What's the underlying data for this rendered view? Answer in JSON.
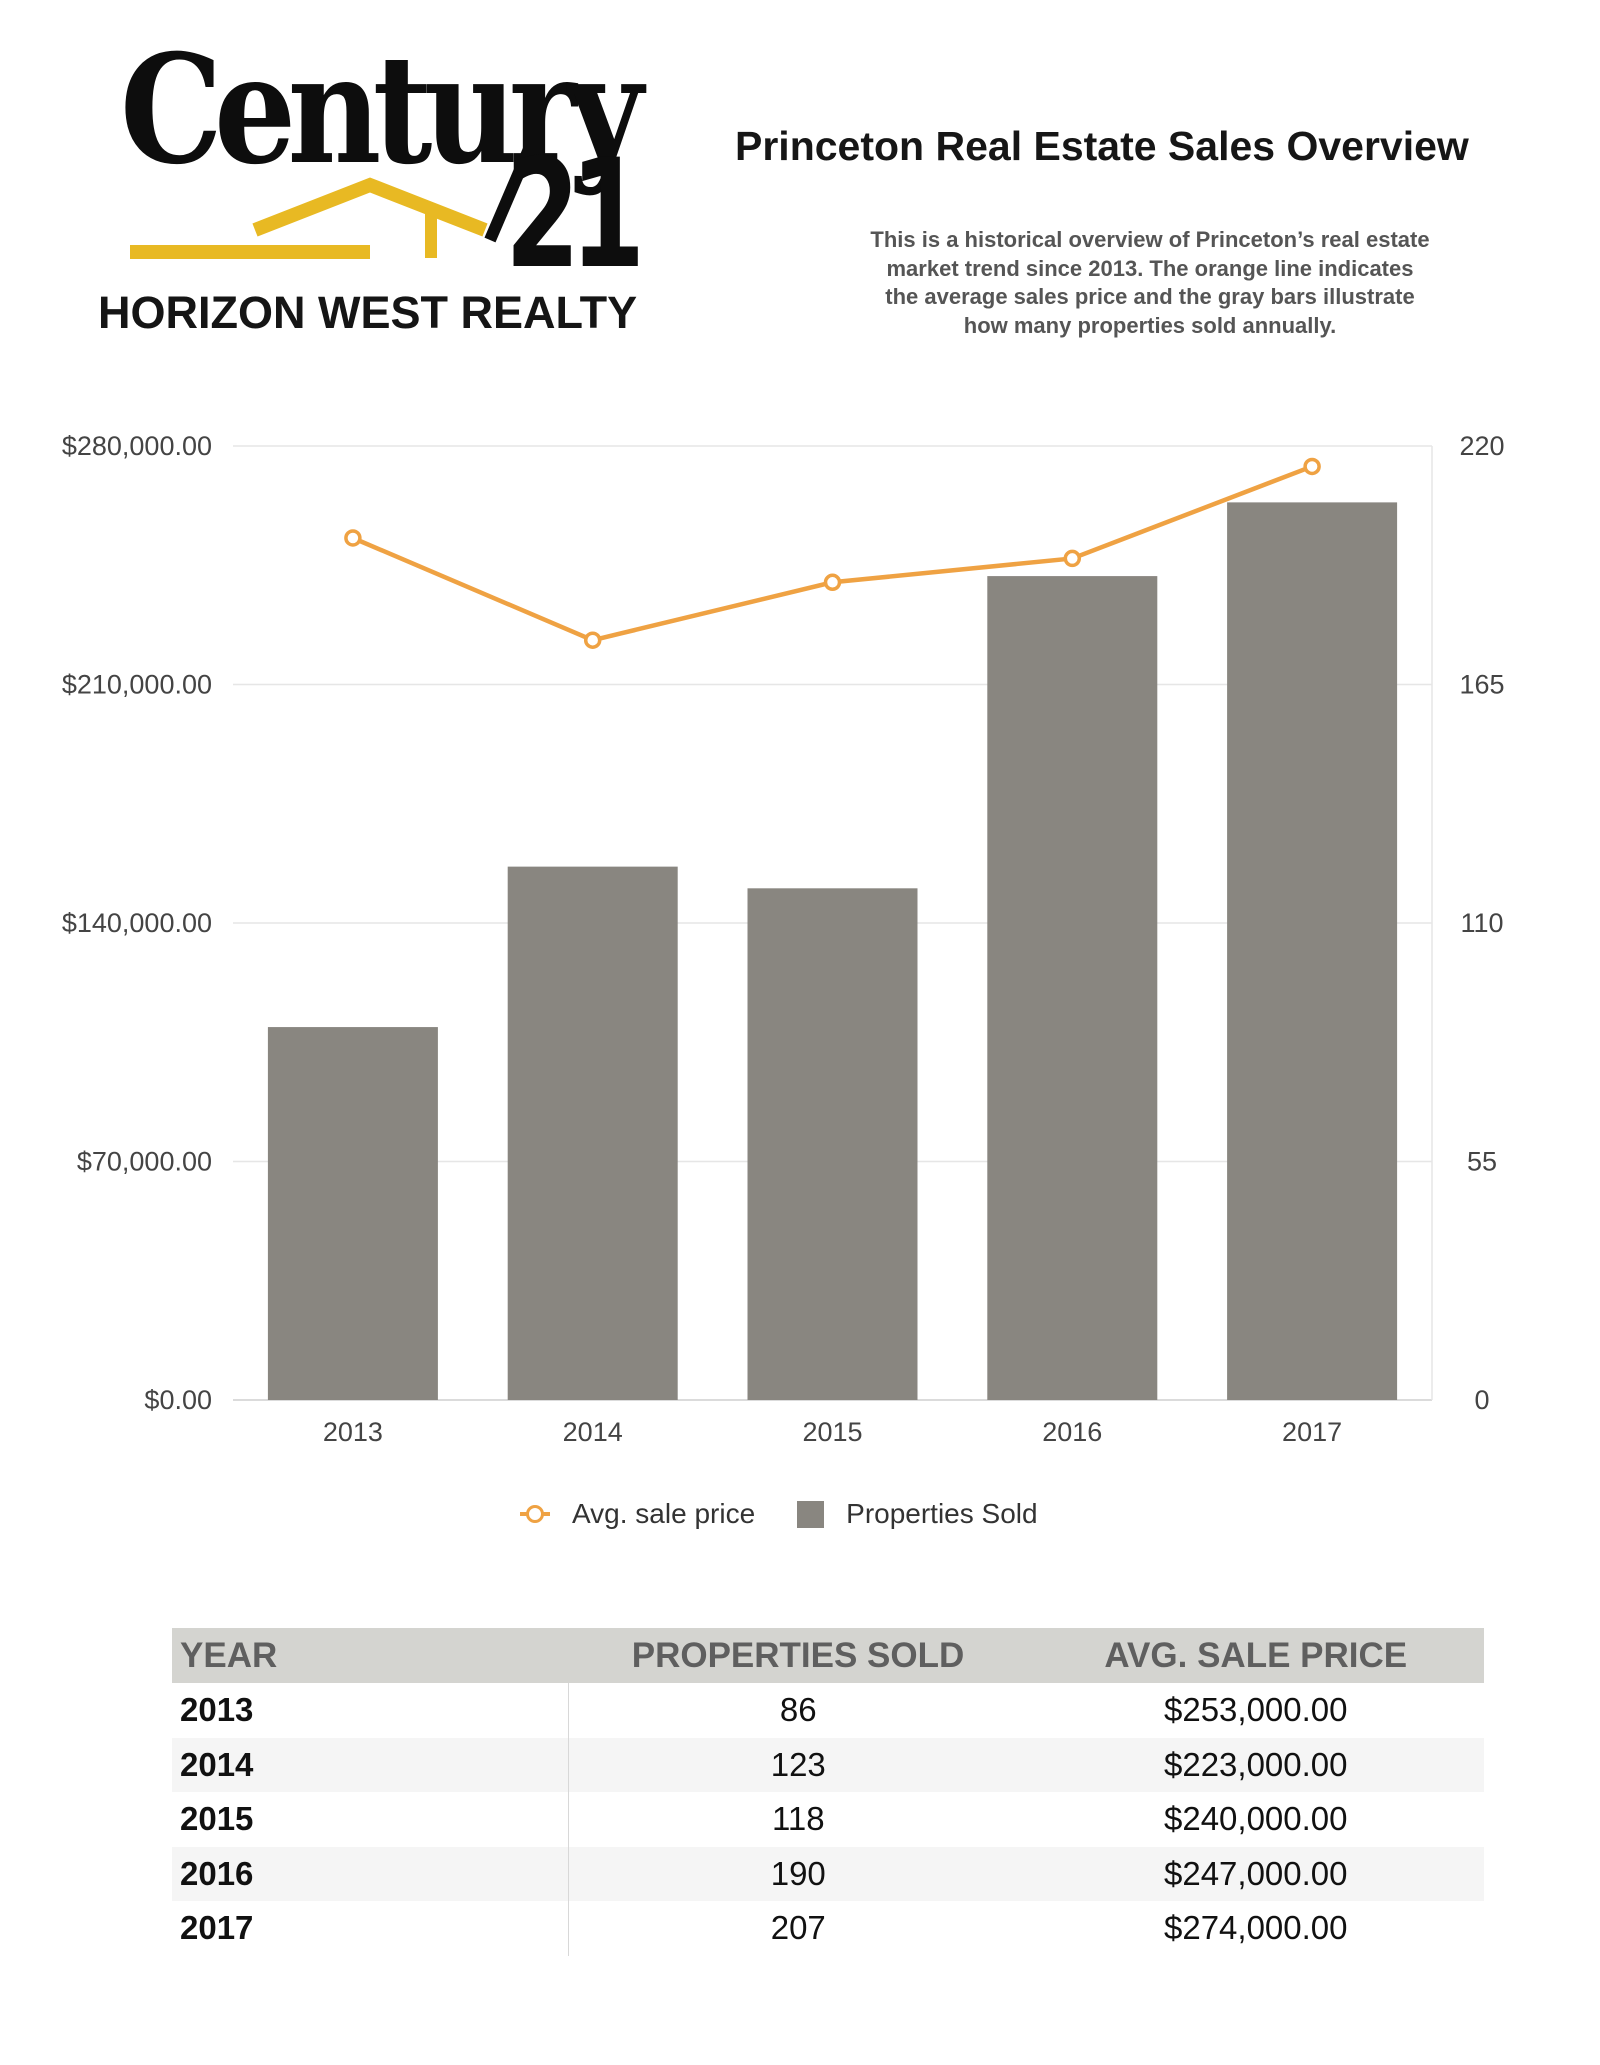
{
  "brand": {
    "logo_word": "Century",
    "logo_number": "21",
    "company": "HORIZON WEST REALTY",
    "logo_black": "#0d0d0d",
    "logo_gold": "#e8b923"
  },
  "header": {
    "title": "Princeton Real Estate Sales Overview",
    "description": "This is a historical overview of Princeton’s real estate market trend since 2013. The orange line indicates the average sales price and the gray bars illustrate how many properties sold annually."
  },
  "chart_data": {
    "type": "bar",
    "categories": [
      "2013",
      "2014",
      "2015",
      "2016",
      "2017"
    ],
    "series": [
      {
        "name": "Properties Sold",
        "type": "bar",
        "axis": "right",
        "color": "#898680",
        "values": [
          86,
          123,
          118,
          190,
          207
        ]
      },
      {
        "name": "Avg. sale price",
        "type": "line",
        "axis": "left",
        "color": "#efa243",
        "values": [
          253000,
          223000,
          240000,
          247000,
          274000
        ]
      }
    ],
    "left_axis": {
      "min": 0,
      "max": 280000,
      "ticks": [
        "$0.00",
        "$70,000.00",
        "$140,000.00",
        "$210,000.00",
        "$280,000.00"
      ],
      "tick_values": [
        0,
        70000,
        140000,
        210000,
        280000
      ]
    },
    "right_axis": {
      "min": 0,
      "max": 220,
      "ticks": [
        "0",
        "55",
        "110",
        "165",
        "220"
      ],
      "tick_values": [
        0,
        55,
        110,
        165,
        220
      ]
    },
    "grid": true,
    "legend_position": "bottom",
    "title": "",
    "xlabel": "",
    "ylabel": ""
  },
  "legend": {
    "line_label": "Avg. sale price",
    "bar_label": "Properties Sold"
  },
  "table": {
    "headers": [
      "YEAR",
      "PROPERTIES SOLD",
      "AVG. SALE PRICE"
    ],
    "rows": [
      [
        "2013",
        "86",
        "$253,000.00"
      ],
      [
        "2014",
        "123",
        "$223,000.00"
      ],
      [
        "2015",
        "118",
        "$240,000.00"
      ],
      [
        "2016",
        "190",
        "$247,000.00"
      ],
      [
        "2017",
        "207",
        "$274,000.00"
      ]
    ]
  }
}
